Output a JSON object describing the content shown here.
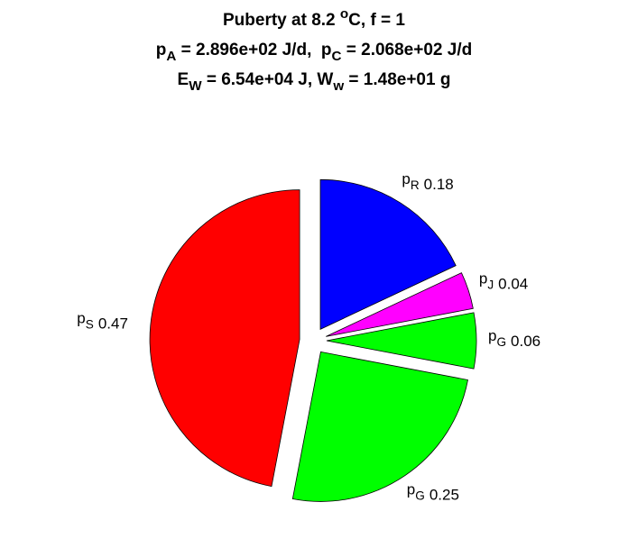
{
  "chart_data": {
    "type": "pie",
    "title": [
      [
        {
          "text": "Puberty at 8.2 "
        },
        {
          "text": "o",
          "script": "sup"
        },
        {
          "text": "C, f = 1"
        }
      ],
      [
        {
          "text": "p"
        },
        {
          "text": "A",
          "script": "sub"
        },
        {
          "text": " = 2.896e+02 J/d,  p"
        },
        {
          "text": "C",
          "script": "sub"
        },
        {
          "text": " = 2.068e+02 J/d"
        }
      ],
      [
        {
          "text": "E"
        },
        {
          "text": "W",
          "script": "sub"
        },
        {
          "text": " = 6.54e+04 J, W"
        },
        {
          "text": "w",
          "script": "sub"
        },
        {
          "text": " = 1.48e+01 g"
        }
      ]
    ],
    "categories": [
      [
        {
          "text": "p"
        },
        {
          "text": "R",
          "script": "sub"
        }
      ],
      [
        {
          "text": "p"
        },
        {
          "text": "J",
          "script": "sub"
        }
      ],
      [
        {
          "text": "p"
        },
        {
          "text": "G",
          "script": "sub"
        }
      ],
      [
        {
          "text": "p"
        },
        {
          "text": "G",
          "script": "sub"
        }
      ],
      [
        {
          "text": "p"
        },
        {
          "text": "S",
          "script": "sub"
        }
      ]
    ],
    "values": [
      0.18,
      0.04,
      0.06,
      0.25,
      0.47
    ],
    "colors": [
      "#0000ff",
      "#ff00ff",
      "#00ff00",
      "#00ff00",
      "#ff0000"
    ],
    "exploded": true
  }
}
